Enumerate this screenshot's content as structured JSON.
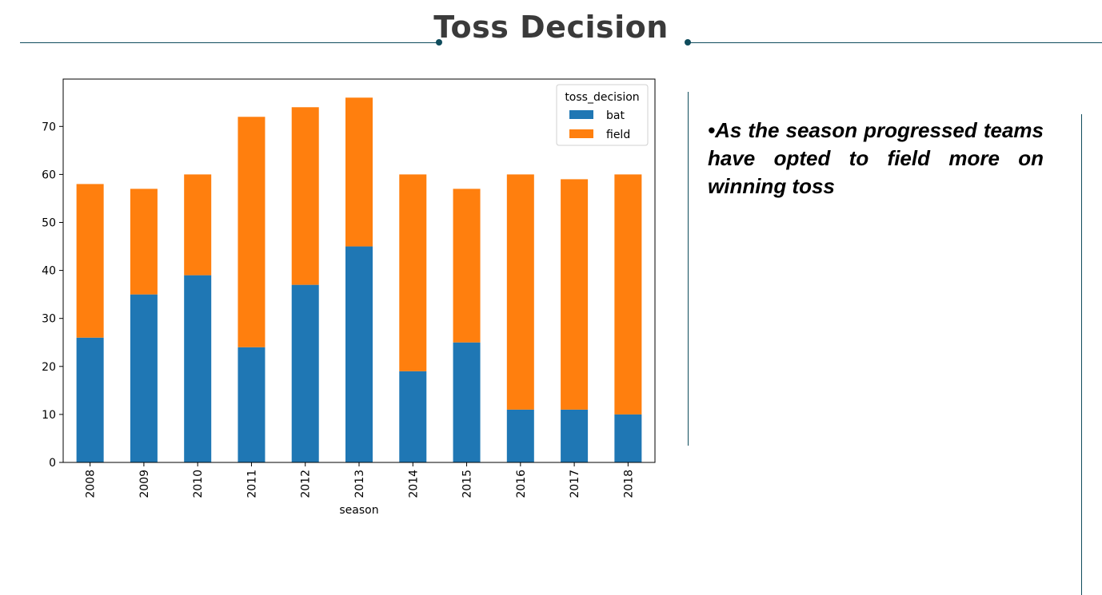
{
  "header": {
    "title": "Toss Decision"
  },
  "notes": {
    "bullet": "•",
    "text": "As the season progressed teams have opted to field more on winning toss"
  },
  "colors": {
    "accent": "#0f4c5c",
    "bat": "#1f77b4",
    "field": "#ff7f0e"
  },
  "chart_data": {
    "type": "bar",
    "stacked": true,
    "categories": [
      "2008",
      "2009",
      "2010",
      "2011",
      "2012",
      "2013",
      "2014",
      "2015",
      "2016",
      "2017",
      "2018"
    ],
    "series": [
      {
        "name": "bat",
        "values": [
          26,
          35,
          39,
          24,
          37,
          45,
          19,
          25,
          11,
          11,
          10
        ]
      },
      {
        "name": "field",
        "values": [
          32,
          22,
          21,
          48,
          37,
          31,
          41,
          32,
          49,
          48,
          50
        ]
      }
    ],
    "xlabel": "season",
    "ylabel": "",
    "ylim": [
      0,
      80
    ],
    "yticks": [
      0,
      10,
      20,
      30,
      40,
      50,
      60,
      70
    ],
    "legend": {
      "title": "toss_decision",
      "position": "top-right"
    },
    "grid": false
  }
}
